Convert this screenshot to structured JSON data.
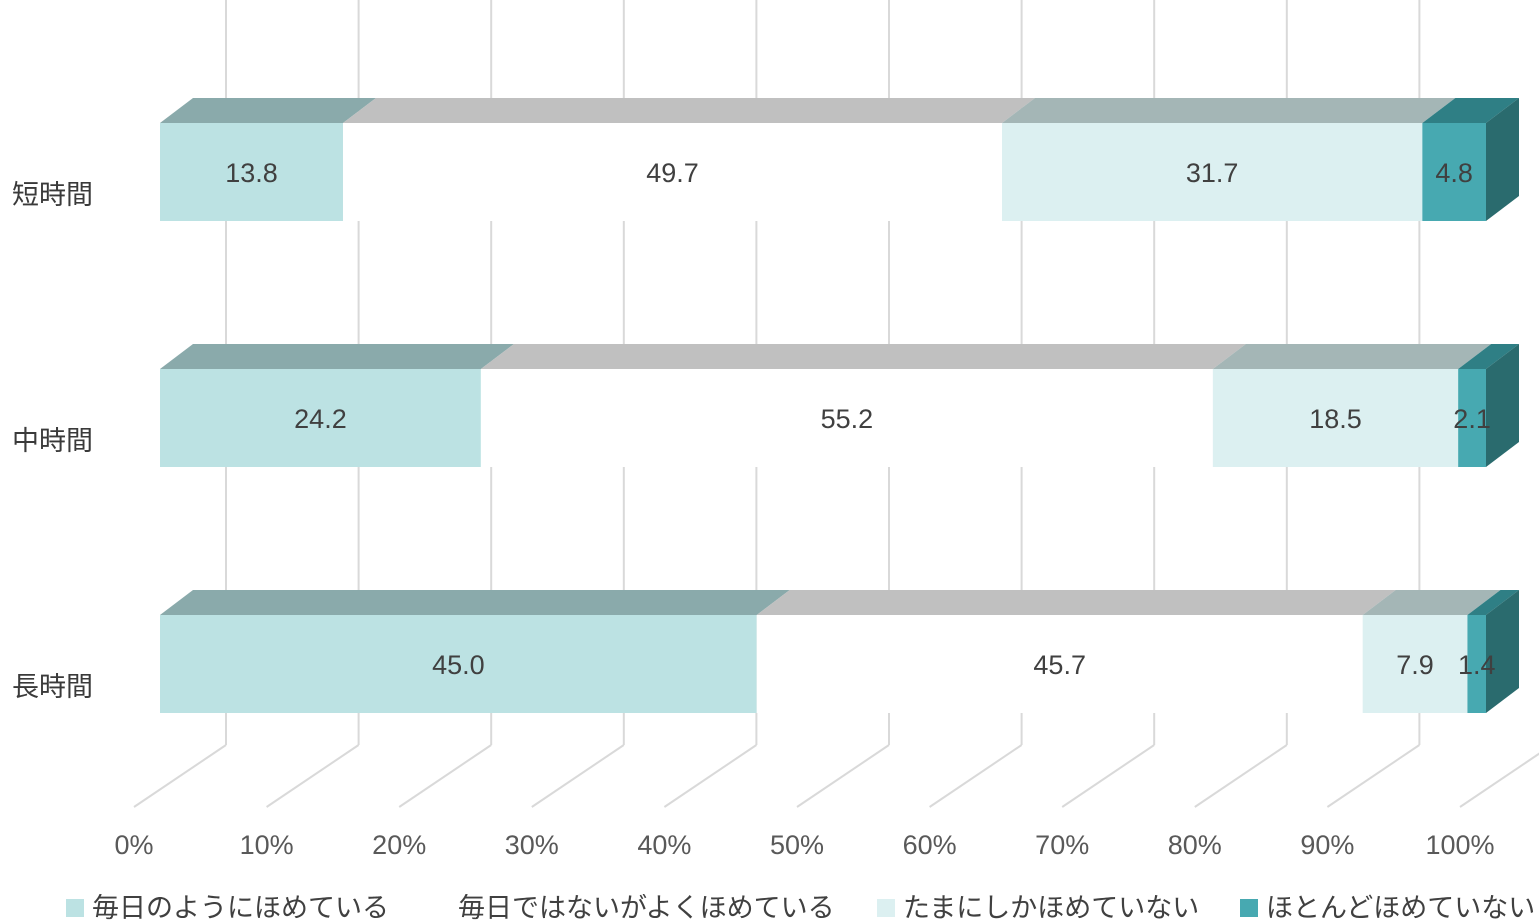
{
  "chart_data": {
    "type": "bar",
    "orientation": "horizontal",
    "stacked": "percent",
    "style": "3d",
    "title": "",
    "xlabel": "",
    "ylabel": "",
    "xlim": [
      0,
      100
    ],
    "x_ticks": [
      "0%",
      "10%",
      "20%",
      "30%",
      "40%",
      "50%",
      "60%",
      "70%",
      "80%",
      "90%",
      "100%"
    ],
    "grid": true,
    "legend_position": "bottom",
    "categories": [
      "短時間",
      "中時間",
      "長時間"
    ],
    "series": [
      {
        "name": "毎日のようにほめている",
        "color": "#bce2e3",
        "values": [
          13.8,
          24.2,
          45.0
        ],
        "labels": [
          "13.8",
          "24.2",
          "45.0"
        ]
      },
      {
        "name": "毎日ではないがよくほめている",
        "color": "#ffffff",
        "values": [
          49.7,
          55.2,
          45.7
        ],
        "labels": [
          "49.7",
          "55.2",
          "45.7"
        ]
      },
      {
        "name": "たまにしかほめていない",
        "color": "#dcf0f1",
        "values": [
          31.7,
          18.5,
          7.9
        ],
        "labels": [
          "31.7",
          "18.5",
          "7.9"
        ]
      },
      {
        "name": "ほとんどほめていない",
        "color": "#47a9b1",
        "values": [
          4.8,
          2.1,
          1.4
        ],
        "labels": [
          "4.8",
          "2.1",
          "1.4"
        ]
      }
    ],
    "colors": {
      "top_face": [
        "#8aaaab",
        "#c0c0c0",
        "#a4b6b6",
        "#2f7f85"
      ],
      "side_face": "#2a6b6e",
      "grid": "#d9d9d9",
      "label_text": "#404040",
      "axis_text": "#595959"
    }
  }
}
